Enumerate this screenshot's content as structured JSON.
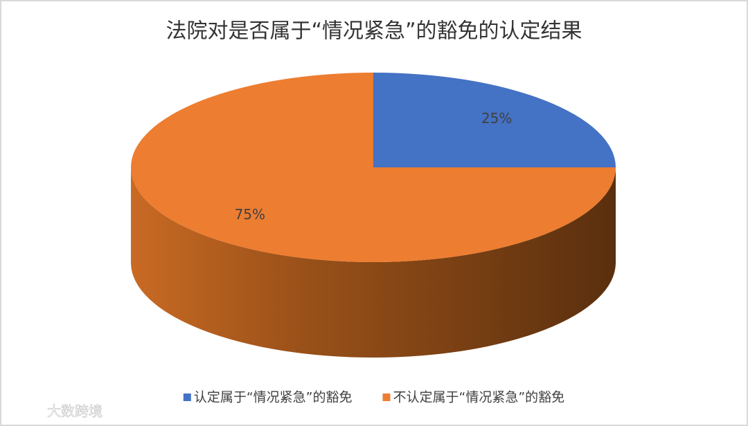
{
  "chart_data": {
    "type": "pie",
    "title": "法院对是否属于“情况紧急”的豁免的认定结果",
    "categories": [
      "认定属于“情况紧急”的豁免",
      "不认定属于“情况紧急”的豁免"
    ],
    "values": [
      25,
      75
    ],
    "value_labels": [
      "25%",
      "75%"
    ],
    "colors": [
      "#4472c4",
      "#ed7d31"
    ],
    "legend": "bottom"
  },
  "watermark": "大数跨境"
}
